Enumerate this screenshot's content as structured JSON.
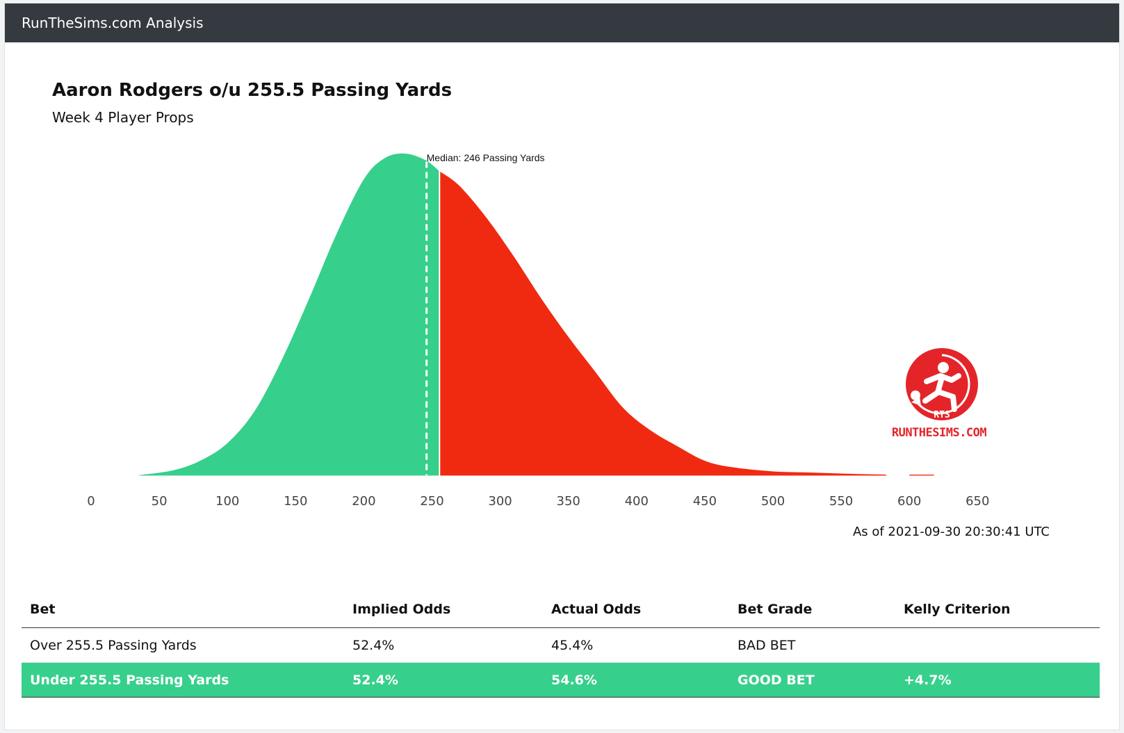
{
  "app_title": "RunTheSims.com Analysis",
  "title": "Aaron Rodgers o/u 255.5 Passing Yards",
  "subtitle": "Week 4 Player Props",
  "chart_data": {
    "type": "area",
    "title": "Aaron Rodgers o/u 255.5 Passing Yards",
    "xlabel": "",
    "ylabel": "",
    "xlim": [
      0,
      650
    ],
    "x_ticks": [
      0,
      50,
      100,
      150,
      200,
      250,
      300,
      350,
      400,
      450,
      500,
      550,
      600,
      650
    ],
    "line_value": 255.5,
    "median": 246,
    "median_label": "Median: 246 Passing Yards",
    "series": [
      {
        "name": "Under 255.5 Passing Yards",
        "color": "#37cf8c",
        "x": [
          35,
          60,
          80,
          100,
          120,
          140,
          160,
          180,
          200,
          215,
          230,
          245,
          255.5
        ],
        "y": [
          0.0,
          0.015,
          0.045,
          0.1,
          0.2,
          0.36,
          0.55,
          0.75,
          0.92,
          0.985,
          1.0,
          0.98,
          0.945
        ]
      },
      {
        "name": "Over 255.5 Passing Yards",
        "color": "#f02a11",
        "x": [
          255.5,
          270,
          290,
          310,
          330,
          350,
          370,
          390,
          410,
          430,
          450,
          470,
          500,
          530,
          560,
          583
        ],
        "y": [
          0.945,
          0.9,
          0.8,
          0.68,
          0.55,
          0.43,
          0.32,
          0.21,
          0.14,
          0.09,
          0.045,
          0.025,
          0.012,
          0.008,
          0.004,
          0.002
        ]
      },
      {
        "name": "Over tail",
        "color": "#f02a11",
        "x": [
          600,
          618
        ],
        "y": [
          0.002,
          0.002
        ]
      }
    ]
  },
  "as_of": "As of 2021-09-30 20:30:41 UTC",
  "logo": {
    "badge": "RTS",
    "text": "RUNTHESIMS.COM",
    "color": "#e3252a"
  },
  "table": {
    "headers": [
      "Bet",
      "Implied Odds",
      "Actual Odds",
      "Bet Grade",
      "Kelly Criterion"
    ],
    "rows": [
      {
        "bet": "Over 255.5 Passing Yards",
        "implied": "52.4%",
        "actual": "45.4%",
        "grade": "BAD BET",
        "kelly": ""
      },
      {
        "bet": "Under 255.5 Passing Yards",
        "implied": "52.4%",
        "actual": "54.6%",
        "grade": "GOOD BET",
        "kelly": "+4.7%"
      }
    ]
  }
}
